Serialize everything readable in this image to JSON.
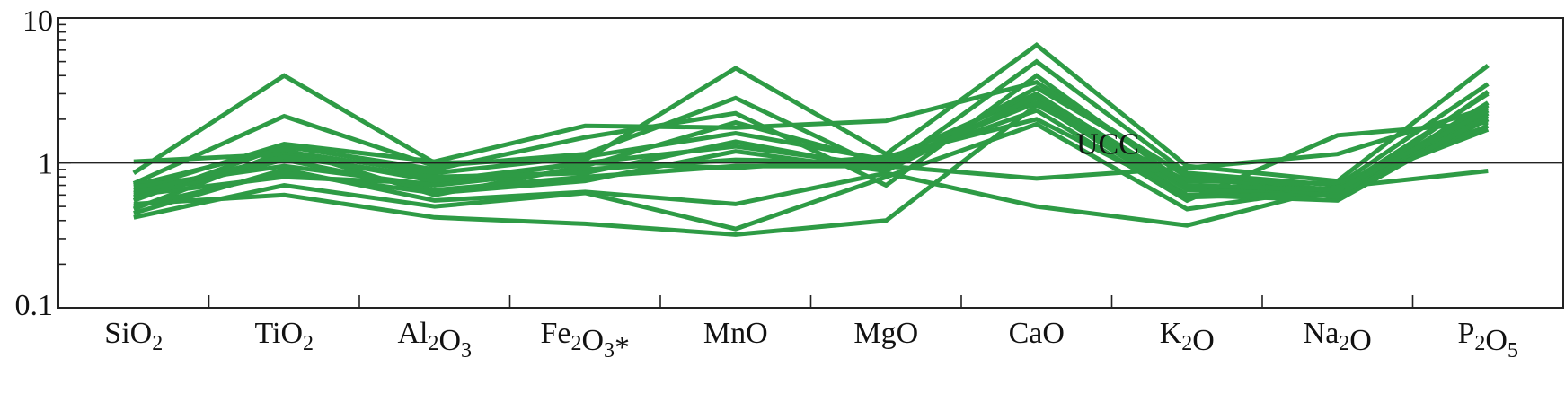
{
  "chart_data": {
    "type": "line",
    "yscale": "log",
    "ylim": [
      0.1,
      10
    ],
    "yticks": [
      0.1,
      1,
      10
    ],
    "ytick_labels": [
      "0.1",
      "1",
      "10"
    ],
    "grid": false,
    "legend": "none",
    "categories": [
      {
        "base": "SiO",
        "parts": [
          [
            "SiO",
            false
          ],
          [
            "2",
            true
          ]
        ]
      },
      {
        "base": "TiO",
        "parts": [
          [
            "TiO",
            false
          ],
          [
            "2",
            true
          ]
        ]
      },
      {
        "base": "Al2O3",
        "parts": [
          [
            "Al",
            false
          ],
          [
            "2",
            true
          ],
          [
            "O",
            false
          ],
          [
            "3",
            true
          ]
        ]
      },
      {
        "base": "Fe2O3*",
        "parts": [
          [
            "Fe",
            false
          ],
          [
            "2",
            true
          ],
          [
            "O",
            false
          ],
          [
            "3",
            true
          ],
          [
            "*",
            false
          ]
        ]
      },
      {
        "base": "MnO",
        "parts": [
          [
            "MnO",
            false
          ]
        ]
      },
      {
        "base": "MgO",
        "parts": [
          [
            "MgO",
            false
          ]
        ]
      },
      {
        "base": "CaO",
        "parts": [
          [
            "CaO",
            false
          ]
        ]
      },
      {
        "base": "K2O",
        "parts": [
          [
            "K",
            false
          ],
          [
            "2",
            true
          ],
          [
            "O",
            false
          ]
        ]
      },
      {
        "base": "Na2O",
        "parts": [
          [
            "Na",
            false
          ],
          [
            "2",
            true
          ],
          [
            "O",
            false
          ]
        ]
      },
      {
        "base": "P2O5",
        "parts": [
          [
            "P",
            false
          ],
          [
            "2",
            true
          ],
          [
            "O",
            false
          ],
          [
            "5",
            true
          ]
        ]
      }
    ],
    "reference_line": {
      "value": 1,
      "label": "UCC"
    },
    "series_color": "#2e9b45",
    "series": [
      {
        "values": [
          0.85,
          4.0,
          1.0,
          1.05,
          4.5,
          1.15,
          6.5,
          0.95,
          0.75,
          4.7
        ]
      },
      {
        "values": [
          0.72,
          2.1,
          0.95,
          1.15,
          2.8,
          0.9,
          5.0,
          0.85,
          0.7,
          3.5
        ]
      },
      {
        "values": [
          0.65,
          1.35,
          1.02,
          1.8,
          1.75,
          1.95,
          3.6,
          0.8,
          0.65,
          3.0
        ]
      },
      {
        "values": [
          0.55,
          1.3,
          0.9,
          1.5,
          2.2,
          0.7,
          4.0,
          0.7,
          0.6,
          2.6
        ]
      },
      {
        "values": [
          0.48,
          1.2,
          0.85,
          1.1,
          1.6,
          1.05,
          3.0,
          0.65,
          0.6,
          2.2
        ]
      },
      {
        "values": [
          0.6,
          0.8,
          0.72,
          1.0,
          1.3,
          0.95,
          2.8,
          0.6,
          0.6,
          2.0
        ]
      },
      {
        "values": [
          0.7,
          1.25,
          0.6,
          0.95,
          1.9,
          1.0,
          2.3,
          0.55,
          1.55,
          1.9
        ]
      },
      {
        "values": [
          0.52,
          0.6,
          0.42,
          0.38,
          0.32,
          0.4,
          2.5,
          0.75,
          0.72,
          1.8
        ]
      },
      {
        "values": [
          0.42,
          0.7,
          0.5,
          0.62,
          0.35,
          0.8,
          1.85,
          0.48,
          0.68,
          1.7
        ]
      },
      {
        "values": [
          0.45,
          0.9,
          0.55,
          0.63,
          0.52,
          0.85,
          0.5,
          0.37,
          0.68,
          0.88
        ]
      },
      {
        "values": [
          0.58,
          1.05,
          0.65,
          0.8,
          0.95,
          0.95,
          0.78,
          0.92,
          1.15,
          2.4
        ]
      },
      {
        "values": [
          1.02,
          1.15,
          0.75,
          1.0,
          0.92,
          1.1,
          2.0,
          0.6,
          0.55,
          2.1
        ]
      },
      {
        "values": [
          0.68,
          0.95,
          0.7,
          0.9,
          1.05,
          1.0,
          2.6,
          0.58,
          0.62,
          2.5
        ]
      },
      {
        "values": [
          0.62,
          1.1,
          0.8,
          0.85,
          1.4,
          0.9,
          3.3,
          0.82,
          0.58,
          3.1
        ]
      },
      {
        "values": [
          0.5,
          0.85,
          0.62,
          0.75,
          1.2,
          0.88,
          2.9,
          0.7,
          0.65,
          2.3
        ]
      }
    ]
  }
}
